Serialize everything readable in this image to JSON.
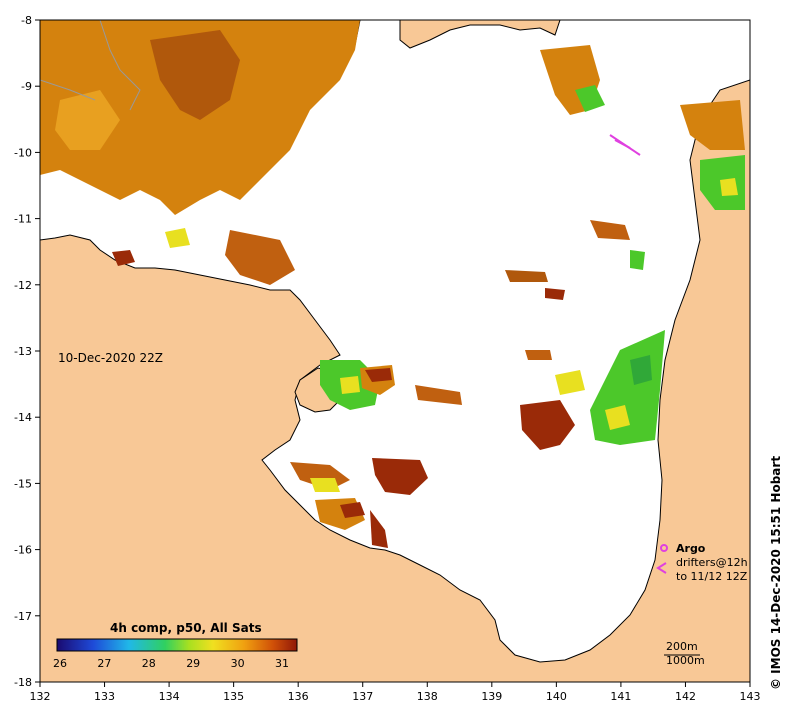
{
  "map": {
    "timestamp": "10-Dec-2020 22Z",
    "lon_ticks": [
      "132",
      "133",
      "134",
      "135",
      "136",
      "137",
      "138",
      "139",
      "140",
      "141",
      "142",
      "143"
    ],
    "lat_ticks": [
      "-8",
      "-9",
      "-10",
      "-11",
      "-12",
      "-13",
      "-14",
      "-15",
      "-16",
      "-17",
      "-18"
    ],
    "colorbar": {
      "title": "4h comp, p50, All Sats",
      "ticks": [
        "26",
        "27",
        "28",
        "29",
        "30",
        "31"
      ]
    },
    "legend": {
      "argo_label": "Argo",
      "drifters_line1": "drifters@12h",
      "drifters_line2": "to 11/12 12Z"
    },
    "contours": {
      "line1": "200m",
      "line2": "1000m"
    },
    "credit": "© IMOS 14-Dec-2020 15:51 Hobart",
    "colors": {
      "land": "#F8C896",
      "water": "#FFFFFF",
      "warm": "#D4820E",
      "hot": "#9A2A08",
      "green": "#4CC82A",
      "yellow": "#E8E020",
      "argo": "#E040E0"
    }
  }
}
